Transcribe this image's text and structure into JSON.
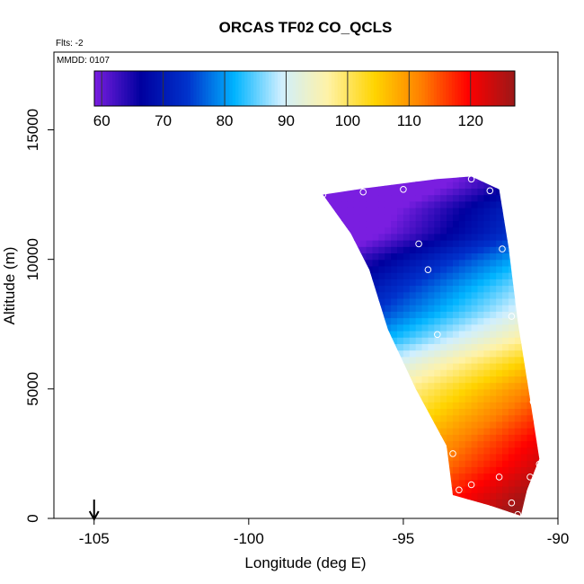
{
  "chart_data": {
    "type": "heatmap",
    "title": "ORCAS TF02 CO_QCLS",
    "subtitle": "Flts: -2",
    "annotation": "MMDD: 0107",
    "xlabel": "Longitude (deg E)",
    "ylabel": "Altitude (m)",
    "xlim": [
      -106.3,
      -90
    ],
    "ylim": [
      0,
      18000
    ],
    "xticks": [
      -105,
      -100,
      -95,
      -90
    ],
    "yticks": [
      0,
      5000,
      10000,
      15000
    ],
    "grid": false,
    "colorbar": {
      "placement": "top-left inside plot",
      "range": [
        58.8,
        127.2
      ],
      "ticks": [
        60,
        70,
        80,
        90,
        100,
        110,
        120
      ],
      "colors": [
        "#7a1ee0",
        "#00009f",
        "#0033cc",
        "#00b4ff",
        "#cfefff",
        "#fff2a6",
        "#ffd400",
        "#ff7f00",
        "#ff0000",
        "#9b1818"
      ]
    },
    "colors": {
      "low": "#7a1ee0",
      "mid": "#ffffff",
      "high": "#9b1818"
    },
    "field": {
      "region_outline": [
        [
          -97.6,
          12500
        ],
        [
          -96.2,
          12750
        ],
        [
          -93.9,
          13100
        ],
        [
          -92.8,
          13200
        ],
        [
          -91.9,
          12700
        ],
        [
          -91.6,
          10500
        ],
        [
          -91.3,
          7600
        ],
        [
          -90.9,
          4600
        ],
        [
          -90.6,
          2300
        ],
        [
          -91.0,
          1100
        ],
        [
          -91.2,
          100
        ],
        [
          -92.2,
          500
        ],
        [
          -93.4,
          900
        ],
        [
          -93.6,
          2800
        ],
        [
          -94.6,
          5000
        ],
        [
          -95.5,
          7300
        ],
        [
          -96.1,
          9600
        ],
        [
          -96.7,
          11000
        ],
        [
          -97.6,
          12500
        ]
      ],
      "value_profile": [
        {
          "altitude": 13000,
          "value": 62
        },
        {
          "altitude": 12000,
          "value": 68
        },
        {
          "altitude": 11000,
          "value": 70
        },
        {
          "altitude": 10000,
          "value": 77
        },
        {
          "altitude": 9000,
          "value": 82
        },
        {
          "altitude": 8000,
          "value": 86
        },
        {
          "altitude": 7000,
          "value": 92
        },
        {
          "altitude": 6000,
          "value": 100
        },
        {
          "altitude": 5000,
          "value": 106
        },
        {
          "altitude": 4000,
          "value": 110
        },
        {
          "altitude": 3000,
          "value": 114
        },
        {
          "altitude": 2000,
          "value": 117
        },
        {
          "altitude": 1000,
          "value": 121
        },
        {
          "altitude": 200,
          "value": 124
        }
      ],
      "longitude_gradient_per_deg": 3.5,
      "reference_longitude": -92.5
    },
    "points": [
      {
        "x": -97.6,
        "y": 12500
      },
      {
        "x": -96.3,
        "y": 12600
      },
      {
        "x": -95.0,
        "y": 12700
      },
      {
        "x": -92.8,
        "y": 13100
      },
      {
        "x": -92.2,
        "y": 12650
      },
      {
        "x": -94.5,
        "y": 10600
      },
      {
        "x": -91.8,
        "y": 10400
      },
      {
        "x": -94.2,
        "y": 9600
      },
      {
        "x": -91.5,
        "y": 7800
      },
      {
        "x": -93.9,
        "y": 7100
      },
      {
        "x": -90.8,
        "y": 4500
      },
      {
        "x": -93.4,
        "y": 2500
      },
      {
        "x": -91.9,
        "y": 1600
      },
      {
        "x": -90.9,
        "y": 1600
      },
      {
        "x": -90.6,
        "y": 2100
      },
      {
        "x": -92.8,
        "y": 1300
      },
      {
        "x": -93.2,
        "y": 1100
      },
      {
        "x": -93.6,
        "y": 1100
      },
      {
        "x": -91.5,
        "y": 600
      },
      {
        "x": -91.3,
        "y": 150
      }
    ],
    "marker": {
      "x": -105,
      "symbol": "down-arrow"
    }
  }
}
